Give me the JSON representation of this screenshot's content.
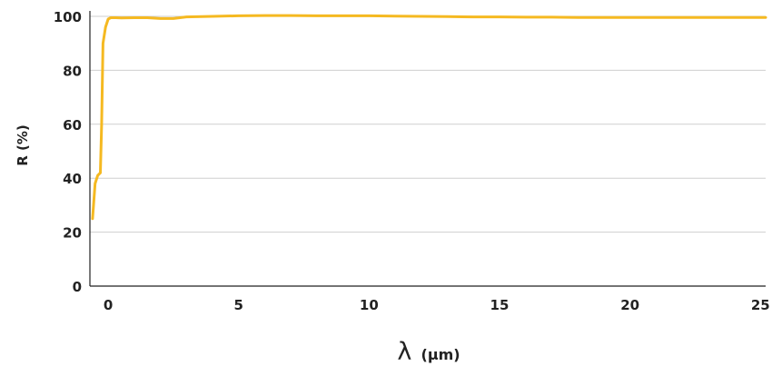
{
  "chart_data": {
    "type": "line",
    "title": "",
    "xlabel": "λ (μm)",
    "xlabel_symbol": "λ",
    "xlabel_unit": "(μm)",
    "ylabel": "R (%)",
    "xlim": [
      -0.7,
      25.2
    ],
    "ylim": [
      0,
      100
    ],
    "xticks": [
      0,
      5,
      10,
      15,
      20,
      25
    ],
    "yticks": [
      0,
      20,
      40,
      60,
      80,
      100
    ],
    "grid": "horizontal",
    "legend": "none",
    "series": [
      {
        "color": "#f5b921",
        "x": [
          -0.6,
          -0.5,
          -0.4,
          -0.3,
          -0.25,
          -0.2,
          -0.1,
          0,
          0.1,
          0.3,
          0.5,
          1,
          1.5,
          2,
          2.5,
          3,
          4,
          5,
          6,
          7,
          8,
          9,
          10,
          11,
          12,
          13,
          14,
          15,
          16,
          17,
          18,
          19,
          20,
          21,
          22,
          23,
          24,
          25,
          25.2
        ],
        "y": [
          25,
          38,
          41,
          42,
          60,
          90,
          96,
          99,
          99.5,
          99.5,
          99.4,
          99.5,
          99.5,
          99.2,
          99.2,
          99.8,
          100,
          100.2,
          100.3,
          100.3,
          100.2,
          100.2,
          100.2,
          100.1,
          100,
          99.9,
          99.8,
          99.8,
          99.7,
          99.7,
          99.6,
          99.6,
          99.6,
          99.6,
          99.6,
          99.6,
          99.6,
          99.6,
          99.6
        ]
      }
    ]
  }
}
